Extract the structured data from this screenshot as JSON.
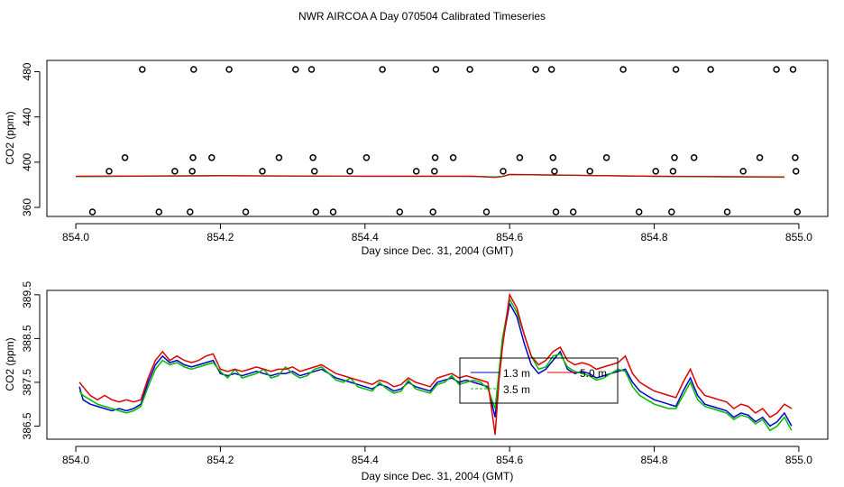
{
  "title": "NWR AIRCOA A  Day 070504  Calibrated Timeseries",
  "chart_data": [
    {
      "type": "scatter",
      "panel": "top",
      "xlabel": "Day since Dec. 31, 2004 (GMT)",
      "ylabel": "CO2 (ppm)",
      "xlim": [
        853.96,
        855.04
      ],
      "ylim": [
        352,
        490
      ],
      "xticks": [
        854.0,
        854.2,
        854.4,
        854.6,
        854.8,
        855.0
      ],
      "xtick_labels": [
        "854.0",
        "854.2",
        "854.4",
        "854.6",
        "854.8",
        "855.0"
      ],
      "yticks": [
        360,
        400,
        440,
        480
      ],
      "ytick_labels": [
        "360",
        "400",
        "440",
        "480"
      ],
      "marker": "open circle",
      "points": [
        {
          "x": 854.023,
          "y": 356
        },
        {
          "x": 854.046,
          "y": 392
        },
        {
          "x": 854.068,
          "y": 404
        },
        {
          "x": 854.092,
          "y": 482
        },
        {
          "x": 854.115,
          "y": 356
        },
        {
          "x": 854.137,
          "y": 392
        },
        {
          "x": 854.158,
          "y": 356
        },
        {
          "x": 854.161,
          "y": 392
        },
        {
          "x": 854.162,
          "y": 404
        },
        {
          "x": 854.163,
          "y": 482
        },
        {
          "x": 854.188,
          "y": 404
        },
        {
          "x": 854.212,
          "y": 482
        },
        {
          "x": 854.235,
          "y": 356
        },
        {
          "x": 854.258,
          "y": 392
        },
        {
          "x": 854.281,
          "y": 404
        },
        {
          "x": 854.304,
          "y": 482
        },
        {
          "x": 854.326,
          "y": 482
        },
        {
          "x": 854.328,
          "y": 404
        },
        {
          "x": 854.33,
          "y": 392
        },
        {
          "x": 854.332,
          "y": 356
        },
        {
          "x": 854.356,
          "y": 356
        },
        {
          "x": 854.379,
          "y": 392
        },
        {
          "x": 854.402,
          "y": 404
        },
        {
          "x": 854.424,
          "y": 482
        },
        {
          "x": 854.448,
          "y": 356
        },
        {
          "x": 854.471,
          "y": 392
        },
        {
          "x": 854.494,
          "y": 356
        },
        {
          "x": 854.496,
          "y": 392
        },
        {
          "x": 854.497,
          "y": 404
        },
        {
          "x": 854.498,
          "y": 482
        },
        {
          "x": 854.522,
          "y": 404
        },
        {
          "x": 854.545,
          "y": 482
        },
        {
          "x": 854.568,
          "y": 356
        },
        {
          "x": 854.591,
          "y": 392
        },
        {
          "x": 854.614,
          "y": 404
        },
        {
          "x": 854.636,
          "y": 482
        },
        {
          "x": 854.658,
          "y": 482
        },
        {
          "x": 854.66,
          "y": 404
        },
        {
          "x": 854.662,
          "y": 392
        },
        {
          "x": 854.664,
          "y": 356
        },
        {
          "x": 854.688,
          "y": 356
        },
        {
          "x": 854.711,
          "y": 392
        },
        {
          "x": 854.734,
          "y": 404
        },
        {
          "x": 854.757,
          "y": 482
        },
        {
          "x": 854.779,
          "y": 356
        },
        {
          "x": 854.802,
          "y": 392
        },
        {
          "x": 854.824,
          "y": 356
        },
        {
          "x": 854.826,
          "y": 392
        },
        {
          "x": 854.828,
          "y": 404
        },
        {
          "x": 854.83,
          "y": 482
        },
        {
          "x": 854.855,
          "y": 404
        },
        {
          "x": 854.878,
          "y": 482
        },
        {
          "x": 854.901,
          "y": 356
        },
        {
          "x": 854.923,
          "y": 392
        },
        {
          "x": 854.946,
          "y": 404
        },
        {
          "x": 854.969,
          "y": 482
        },
        {
          "x": 854.992,
          "y": 482
        },
        {
          "x": 854.995,
          "y": 404
        },
        {
          "x": 854.996,
          "y": 392
        },
        {
          "x": 854.998,
          "y": 356
        }
      ],
      "line_series": [
        {
          "name": "1.3 m",
          "color": "#0000cc",
          "x": [
            854.0,
            854.2,
            854.4,
            854.55,
            854.58,
            854.59,
            854.6,
            854.8,
            854.98
          ],
          "values": [
            387.4,
            388.0,
            387.5,
            387.4,
            386.8,
            387.4,
            389.0,
            387.5,
            386.8
          ]
        },
        {
          "name": "3.5 m",
          "color": "#00bb00",
          "x": [
            854.0,
            854.2,
            854.4,
            854.55,
            854.58,
            854.59,
            854.6,
            854.8,
            854.98
          ],
          "values": [
            387.2,
            387.9,
            387.5,
            387.5,
            387.0,
            387.5,
            389.1,
            387.3,
            386.6
          ]
        },
        {
          "name": "5.0 m",
          "color": "#dd0000",
          "x": [
            854.0,
            854.2,
            854.4,
            854.55,
            854.58,
            854.59,
            854.6,
            854.8,
            854.98
          ],
          "values": [
            387.6,
            388.1,
            387.6,
            387.6,
            386.5,
            387.3,
            389.2,
            387.6,
            387.0
          ]
        }
      ]
    },
    {
      "type": "line",
      "panel": "bottom",
      "xlabel": "Day since Dec. 31, 2004 (GMT)",
      "ylabel": "CO2 (ppm)",
      "xlim": [
        853.96,
        855.04
      ],
      "ylim": [
        386.2,
        389.6
      ],
      "xticks": [
        854.0,
        854.2,
        854.4,
        854.6,
        854.8,
        855.0
      ],
      "xtick_labels": [
        "854.0",
        "854.2",
        "854.4",
        "854.6",
        "854.8",
        "855.0"
      ],
      "yticks": [
        386.5,
        387.5,
        388.5,
        389.5
      ],
      "ytick_labels": [
        "386.5",
        "387.5",
        "388.5",
        "389.5"
      ],
      "legend": {
        "placement": "center-right",
        "entries": [
          "1.3 m",
          "3.5 m",
          "5.0 m"
        ]
      },
      "x": [
        854.005,
        854.01,
        854.02,
        854.03,
        854.04,
        854.05,
        854.06,
        854.07,
        854.08,
        854.09,
        854.1,
        854.11,
        854.12,
        854.13,
        854.14,
        854.15,
        854.16,
        854.17,
        854.18,
        854.19,
        854.2,
        854.21,
        854.22,
        854.23,
        854.24,
        854.25,
        854.26,
        854.27,
        854.28,
        854.29,
        854.3,
        854.31,
        854.32,
        854.33,
        854.34,
        854.35,
        854.36,
        854.37,
        854.38,
        854.39,
        854.4,
        854.41,
        854.42,
        854.43,
        854.44,
        854.45,
        854.46,
        854.47,
        854.48,
        854.49,
        854.5,
        854.51,
        854.52,
        854.53,
        854.54,
        854.55,
        854.56,
        854.57,
        854.58,
        854.585,
        854.59,
        854.6,
        854.61,
        854.62,
        854.63,
        854.64,
        854.65,
        854.66,
        854.67,
        854.68,
        854.69,
        854.7,
        854.71,
        854.72,
        854.73,
        854.74,
        854.75,
        854.76,
        854.77,
        854.78,
        854.79,
        854.8,
        854.81,
        854.82,
        854.83,
        854.84,
        854.85,
        854.86,
        854.87,
        854.88,
        854.89,
        854.9,
        854.91,
        854.92,
        854.93,
        854.94,
        854.95,
        854.96,
        854.97,
        854.98,
        854.99
      ],
      "series": [
        {
          "name": "1.3 m",
          "color": "#0000cc",
          "values": [
            387.4,
            387.1,
            387.0,
            386.95,
            386.9,
            386.85,
            386.9,
            386.85,
            386.9,
            387.0,
            387.5,
            387.9,
            388.1,
            387.95,
            388.0,
            387.9,
            387.85,
            387.9,
            387.95,
            388.0,
            387.7,
            387.65,
            387.7,
            387.65,
            387.7,
            387.75,
            387.7,
            387.65,
            387.7,
            387.7,
            387.75,
            387.65,
            387.7,
            387.75,
            387.8,
            387.7,
            387.6,
            387.55,
            387.5,
            387.45,
            387.4,
            387.35,
            387.45,
            387.4,
            387.3,
            387.35,
            387.5,
            387.4,
            387.35,
            387.3,
            387.5,
            387.55,
            387.6,
            387.5,
            387.55,
            387.5,
            387.45,
            387.4,
            386.7,
            387.6,
            388.4,
            389.3,
            389.0,
            388.4,
            387.9,
            387.7,
            387.8,
            388.0,
            388.2,
            387.8,
            387.7,
            387.75,
            387.7,
            387.6,
            387.65,
            387.7,
            387.75,
            387.8,
            387.5,
            387.3,
            387.2,
            387.1,
            387.05,
            387.0,
            386.95,
            387.3,
            387.6,
            387.2,
            387.0,
            386.95,
            386.9,
            386.85,
            386.7,
            386.8,
            386.75,
            386.6,
            386.7,
            386.5,
            386.6,
            386.8,
            386.5
          ]
        },
        {
          "name": "3.5 m",
          "color": "#00bb00",
          "values": [
            387.3,
            387.2,
            387.1,
            387.0,
            386.95,
            386.9,
            386.85,
            386.8,
            386.85,
            386.95,
            387.4,
            387.8,
            388.0,
            387.9,
            387.95,
            387.85,
            387.8,
            387.85,
            387.9,
            387.95,
            387.75,
            387.6,
            387.8,
            387.6,
            387.65,
            387.7,
            387.8,
            387.6,
            387.65,
            387.85,
            387.7,
            387.6,
            387.65,
            387.8,
            387.85,
            387.7,
            387.55,
            387.5,
            387.6,
            387.4,
            387.35,
            387.3,
            387.5,
            387.35,
            387.25,
            387.3,
            387.55,
            387.35,
            387.3,
            387.25,
            387.45,
            387.5,
            387.65,
            387.45,
            387.5,
            387.55,
            387.5,
            387.35,
            386.9,
            387.7,
            388.5,
            389.4,
            389.1,
            388.6,
            388.1,
            387.8,
            387.85,
            388.1,
            388.15,
            387.85,
            387.75,
            387.7,
            387.65,
            387.55,
            387.6,
            387.7,
            387.8,
            387.75,
            387.4,
            387.2,
            387.1,
            387.0,
            386.95,
            386.9,
            386.9,
            387.2,
            387.5,
            387.1,
            386.95,
            386.9,
            386.85,
            386.8,
            386.65,
            386.75,
            386.7,
            386.55,
            386.65,
            386.4,
            386.5,
            386.7,
            386.4
          ]
        },
        {
          "name": "5.0 m",
          "color": "#dd0000",
          "values": [
            387.5,
            387.4,
            387.2,
            387.1,
            387.2,
            387.1,
            387.05,
            387.1,
            387.05,
            387.1,
            387.6,
            388.0,
            388.2,
            388.0,
            388.1,
            388.0,
            387.95,
            388.0,
            388.1,
            388.15,
            387.8,
            387.75,
            387.8,
            387.75,
            387.8,
            387.85,
            387.8,
            387.75,
            387.8,
            387.8,
            387.85,
            387.75,
            387.8,
            387.85,
            387.9,
            387.8,
            387.7,
            387.65,
            387.6,
            387.55,
            387.5,
            387.45,
            387.55,
            387.5,
            387.4,
            387.45,
            387.6,
            387.5,
            387.45,
            387.4,
            387.6,
            387.65,
            387.7,
            387.6,
            387.65,
            387.6,
            387.55,
            387.5,
            386.3,
            387.5,
            388.3,
            389.5,
            389.2,
            388.6,
            388.1,
            387.9,
            388.0,
            388.2,
            388.3,
            388.0,
            387.9,
            387.95,
            387.9,
            387.8,
            387.85,
            387.9,
            387.95,
            388.1,
            387.7,
            387.5,
            387.4,
            387.3,
            387.25,
            387.2,
            387.15,
            387.5,
            387.8,
            387.4,
            387.2,
            387.15,
            387.1,
            387.05,
            386.9,
            387.0,
            386.95,
            386.8,
            386.9,
            386.7,
            386.8,
            387.0,
            386.9
          ]
        }
      ]
    }
  ]
}
